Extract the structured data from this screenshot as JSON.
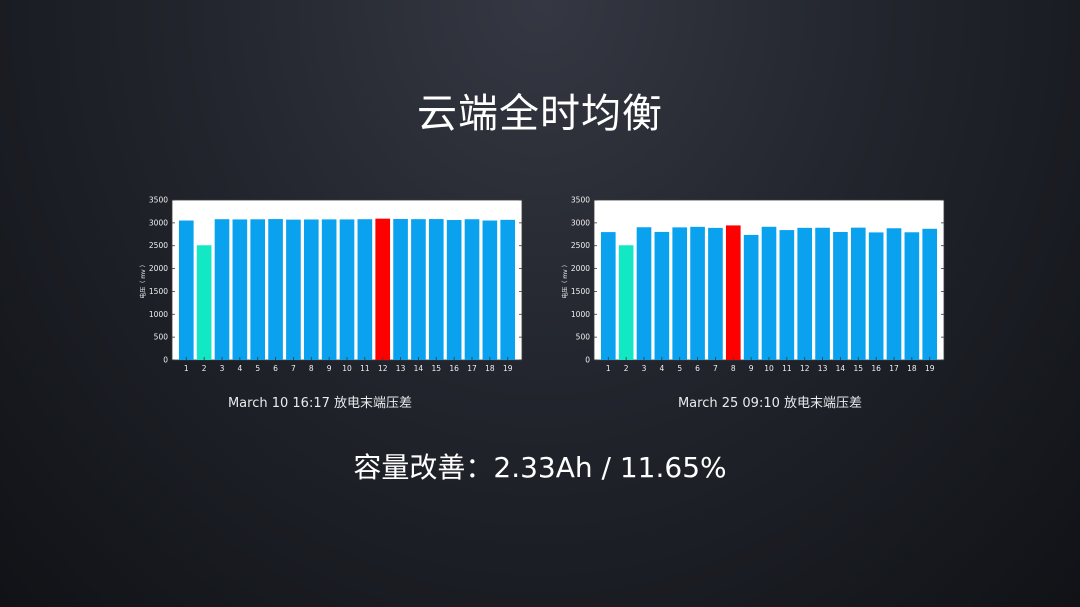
{
  "slide": {
    "title": "云端全时均衡",
    "metric": "容量改善：2.33Ah / 11.65%"
  },
  "colors": {
    "bar": "#0aa2ee",
    "min_bar": "#12e8c4",
    "max_bar": "#ff0000",
    "plot_bg": "#ffffff",
    "axis": "#3a3a3a"
  },
  "chart_data": [
    {
      "type": "bar",
      "title": "",
      "caption": "March 10 16:17 放电末端压差",
      "ylabel": "电压（ mv ）",
      "xlabel": "",
      "ylim": [
        0,
        3500
      ],
      "yticks": [
        0,
        500,
        1000,
        1500,
        2000,
        2500,
        3000,
        3500
      ],
      "grid": false,
      "categories": [
        "1",
        "2",
        "3",
        "4",
        "5",
        "6",
        "7",
        "8",
        "9",
        "10",
        "11",
        "12",
        "13",
        "14",
        "15",
        "16",
        "17",
        "18",
        "19"
      ],
      "values": [
        3051,
        2510,
        3080,
        3075,
        3078,
        3083,
        3070,
        3074,
        3076,
        3075,
        3080,
        3092,
        3084,
        3081,
        3083,
        3062,
        3079,
        3051,
        3066
      ],
      "min_index": 1,
      "max_index": 11
    },
    {
      "type": "bar",
      "title": "",
      "caption": "March 25 09:10 放电末端压差",
      "ylabel": "电压（ mv ）",
      "xlabel": "",
      "ylim": [
        0,
        3500
      ],
      "yticks": [
        0,
        500,
        1000,
        1500,
        2000,
        2500,
        3000,
        3500
      ],
      "grid": false,
      "categories": [
        "1",
        "2",
        "3",
        "4",
        "5",
        "6",
        "7",
        "8",
        "9",
        "10",
        "11",
        "12",
        "13",
        "14",
        "15",
        "16",
        "17",
        "18",
        "19"
      ],
      "values": [
        2798,
        2510,
        2904,
        2802,
        2901,
        2913,
        2890,
        2944,
        2736,
        2914,
        2842,
        2891,
        2893,
        2800,
        2895,
        2791,
        2882,
        2794,
        2870
      ],
      "min_index": 1,
      "max_index": 7
    }
  ]
}
